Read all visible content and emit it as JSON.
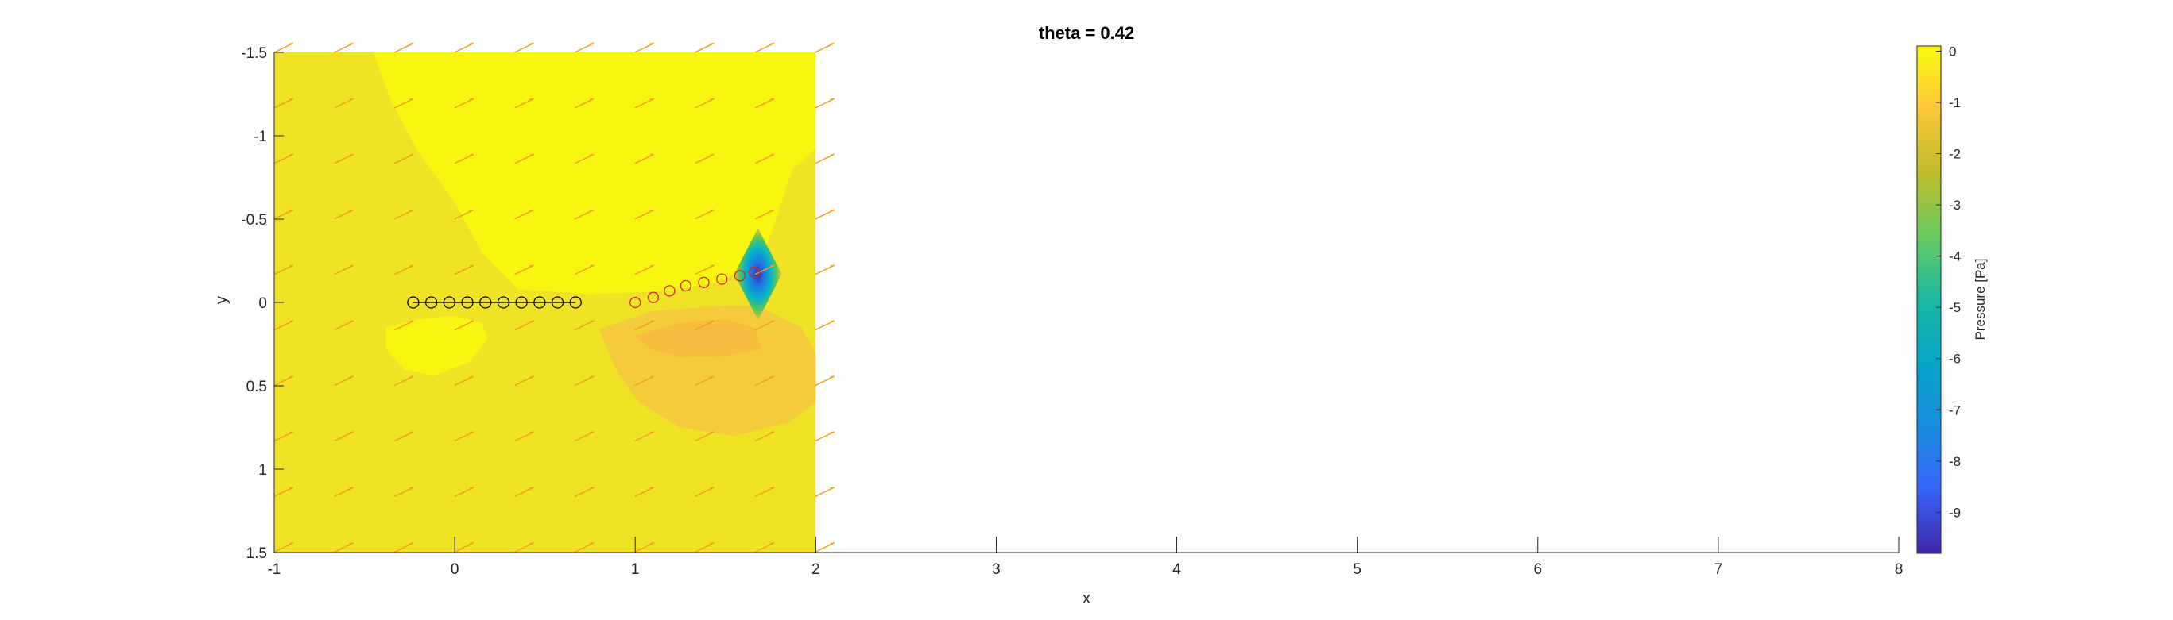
{
  "chart_data": {
    "type": "contour",
    "title": "theta = 0.42",
    "xlabel": "x",
    "ylabel": "y",
    "xlim": [
      -1,
      8
    ],
    "ylim": [
      -1.5,
      1.5
    ],
    "y_reversed": true,
    "x_ticks": [
      "-1",
      "0",
      "1",
      "2",
      "3",
      "4",
      "5",
      "6",
      "7",
      "8"
    ],
    "y_ticks": [
      "-1.5",
      "-1",
      "-0.5",
      "0",
      "0.5",
      "1",
      "1.5"
    ],
    "field_extent": {
      "x": [
        -1,
        2
      ],
      "y": [
        -1.5,
        1.5
      ]
    },
    "colorbar": {
      "label": "Pressure [Pa]",
      "range": [
        -9.8,
        0.1
      ],
      "ticks": [
        "0",
        "-1",
        "-2",
        "-3",
        "-4",
        "-5",
        "-6",
        "-7",
        "-8",
        "-9"
      ],
      "colormap": "parula"
    },
    "black_markers": {
      "marker": "circle",
      "color": "#000000",
      "points": [
        [
          -0.23,
          0
        ],
        [
          -0.13,
          0
        ],
        [
          -0.03,
          0
        ],
        [
          0.07,
          0
        ],
        [
          0.17,
          0
        ],
        [
          0.27,
          0
        ],
        [
          0.37,
          0
        ],
        [
          0.47,
          0
        ],
        [
          0.57,
          0
        ],
        [
          0.67,
          0
        ]
      ]
    },
    "red_markers": {
      "marker": "circle",
      "color": "#d62728",
      "points": [
        [
          1.0,
          0
        ],
        [
          1.1,
          -0.03
        ],
        [
          1.19,
          -0.07
        ],
        [
          1.28,
          -0.1
        ],
        [
          1.38,
          -0.12
        ],
        [
          1.48,
          -0.14
        ],
        [
          1.58,
          -0.16
        ],
        [
          1.66,
          -0.18
        ]
      ]
    },
    "vector_field": {
      "color": "#f0a020",
      "x_step": 0.333,
      "y_step": 0.333,
      "direction": [
        1,
        -0.12
      ]
    },
    "low_pressure_peak": {
      "x": 1.68,
      "y": -0.17,
      "value": -9.8
    }
  }
}
